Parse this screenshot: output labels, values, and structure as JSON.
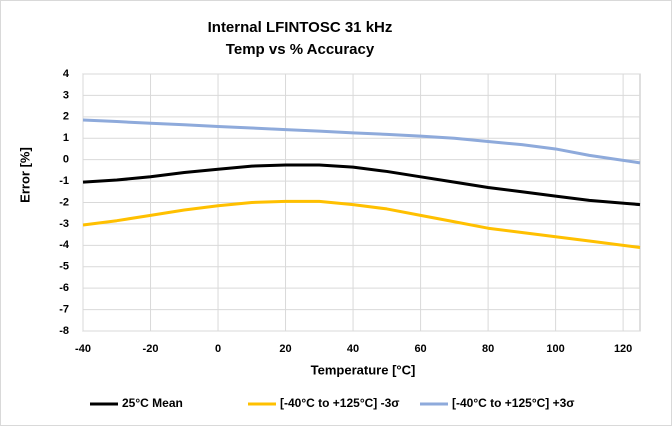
{
  "chart_data": {
    "type": "line",
    "title": "Internal LFINTOSC  31 kHz",
    "subtitle": "Temp vs % Accuracy",
    "x_label": "Temperature [°C]",
    "y_label": "Error [%]",
    "x": [
      -40,
      -30,
      -20,
      -10,
      0,
      10,
      20,
      30,
      40,
      50,
      60,
      70,
      80,
      90,
      100,
      110,
      125
    ],
    "series": [
      {
        "name": "25°C Mean",
        "color": "#000000",
        "values": [
          -1.05,
          -0.95,
          -0.8,
          -0.6,
          -0.45,
          -0.3,
          -0.25,
          -0.25,
          -0.35,
          -0.55,
          -0.8,
          -1.05,
          -1.3,
          -1.5,
          -1.7,
          -1.9,
          -2.1
        ]
      },
      {
        "name": "[-40°C to +125°C]  -3σ",
        "color": "#ffc000",
        "values": [
          -3.05,
          -2.85,
          -2.6,
          -2.35,
          -2.15,
          -2.0,
          -1.95,
          -1.95,
          -2.1,
          -2.3,
          -2.6,
          -2.9,
          -3.2,
          -3.4,
          -3.6,
          -3.8,
          -4.1
        ]
      },
      {
        "name": "[-40°C to +125°C] +3σ",
        "color": "#8eaadb",
        "values": [
          1.85,
          1.78,
          1.7,
          1.63,
          1.55,
          1.48,
          1.4,
          1.33,
          1.25,
          1.18,
          1.1,
          1.0,
          0.85,
          0.7,
          0.5,
          0.2,
          -0.15
        ]
      }
    ],
    "xlim": [
      -40,
      125
    ],
    "xticks": [
      -40,
      -20,
      0,
      20,
      40,
      60,
      80,
      100,
      120
    ],
    "ylim": [
      -8,
      4
    ],
    "yticks": [
      -8,
      -7,
      -6,
      -5,
      -4,
      -3,
      -2,
      -1,
      0,
      1,
      2,
      3,
      4
    ],
    "grid": true,
    "legend": "bottom"
  }
}
